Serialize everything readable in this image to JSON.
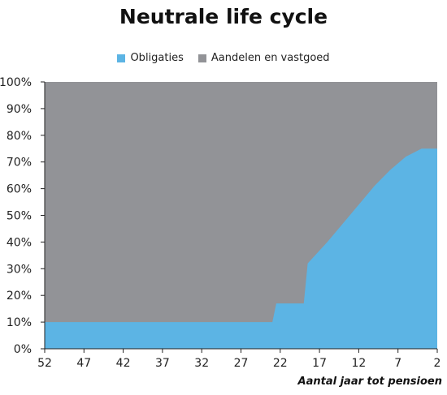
{
  "chart_data": {
    "type": "area",
    "title": "Neutrale life cycle",
    "xlabel": "Aantal jaar tot pensioen",
    "ylabel": "",
    "x_ticks": [
      52,
      47,
      42,
      37,
      32,
      27,
      22,
      17,
      12,
      7,
      2
    ],
    "x_range": [
      52,
      2
    ],
    "ylim": [
      0,
      100
    ],
    "y_ticks": [
      "0%",
      "10%",
      "20%",
      "30%",
      "40%",
      "50%",
      "60%",
      "70%",
      "80%",
      "90%",
      "100%"
    ],
    "legend_position": "top-center",
    "grid": false,
    "series": [
      {
        "name": "Obligaties",
        "color": "#5cb4e4",
        "points": [
          [
            52,
            10
          ],
          [
            23,
            10
          ],
          [
            22.5,
            17
          ],
          [
            19,
            17
          ],
          [
            18.5,
            32
          ],
          [
            16,
            40
          ],
          [
            14,
            47
          ],
          [
            12,
            54
          ],
          [
            10,
            61
          ],
          [
            8,
            67
          ],
          [
            6,
            72
          ],
          [
            4,
            75
          ],
          [
            2,
            75
          ]
        ]
      },
      {
        "name": "Aandelen en vastgoed",
        "color": "#929397",
        "fill_to": 100
      }
    ]
  }
}
